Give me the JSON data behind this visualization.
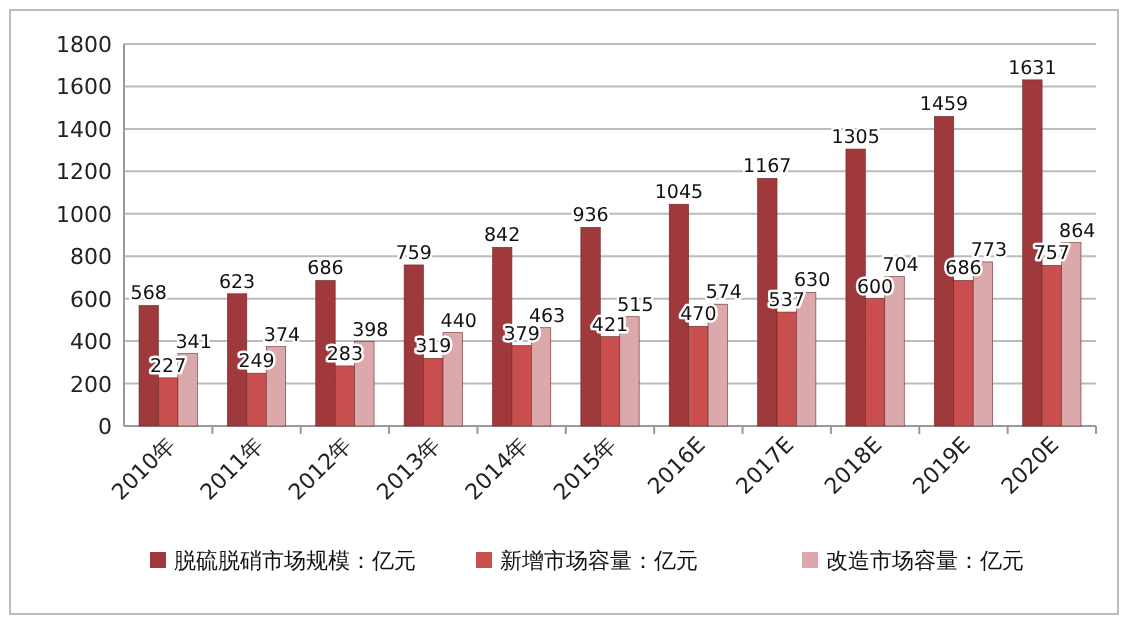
{
  "chart_data": {
    "type": "bar",
    "categories": [
      "2010年",
      "2011年",
      "2012年",
      "2013年",
      "2014年",
      "2015年",
      "2016E",
      "2017E",
      "2018E",
      "2019E",
      "2020E"
    ],
    "series": [
      {
        "name": "脱硫脱硝市场规模：亿元",
        "color": "#a0393b",
        "values": [
          568,
          623,
          686,
          759,
          842,
          936,
          1045,
          1167,
          1305,
          1459,
          1631
        ]
      },
      {
        "name": "新增市场容量：亿元",
        "color": "#c94f4f",
        "values": [
          227,
          249,
          283,
          319,
          379,
          421,
          470,
          537,
          600,
          686,
          757
        ]
      },
      {
        "name": "改造市场容量：亿元",
        "color": "#dba9ac",
        "values": [
          341,
          374,
          398,
          440,
          463,
          515,
          574,
          630,
          704,
          773,
          864
        ]
      }
    ],
    "ylim": [
      0,
      1800
    ],
    "yticks": [
      0,
      200,
      400,
      600,
      800,
      1000,
      1200,
      1400,
      1600,
      1800
    ],
    "grid": "y",
    "legend": "bottom",
    "data_labels": true
  }
}
